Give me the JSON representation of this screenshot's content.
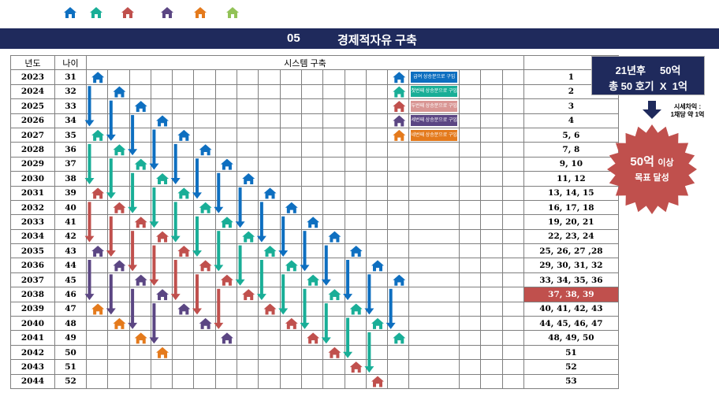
{
  "header": {
    "number": "05",
    "title": "경제적자유 구축"
  },
  "colors": {
    "blue": "#0e6fc0",
    "teal": "#19ae97",
    "red": "#c0504d",
    "purple": "#5b4683",
    "orange": "#e47a1c",
    "green": "#92c257",
    "navy": "#1f2a5c"
  },
  "top_icons": [
    "house-icon-blue",
    "house-icon-teal",
    "house-icon-red",
    "house-icon-purple",
    "house-icon-orange",
    "house-icon-green"
  ],
  "table": {
    "headers": {
      "year": "년도",
      "age": "나이",
      "system": "시스템 구축"
    },
    "rows": [
      {
        "year": "2023",
        "age": "31",
        "result": "1"
      },
      {
        "year": "2024",
        "age": "32",
        "result": "2"
      },
      {
        "year": "2025",
        "age": "33",
        "result": "3"
      },
      {
        "year": "2026",
        "age": "34",
        "result": "4"
      },
      {
        "year": "2027",
        "age": "35",
        "result": "5, 6"
      },
      {
        "year": "2028",
        "age": "36",
        "result": "7, 8"
      },
      {
        "year": "2029",
        "age": "37",
        "result": "9, 10"
      },
      {
        "year": "2030",
        "age": "38",
        "result": "11, 12"
      },
      {
        "year": "2031",
        "age": "39",
        "result": "13, 14, 15"
      },
      {
        "year": "2032",
        "age": "40",
        "result": "16, 17, 18"
      },
      {
        "year": "2033",
        "age": "41",
        "result": "19, 20, 21"
      },
      {
        "year": "2034",
        "age": "42",
        "result": "22, 23, 24"
      },
      {
        "year": "2035",
        "age": "43",
        "result": "25, 26, 27 ,28"
      },
      {
        "year": "2036",
        "age": "44",
        "result": "29, 30, 31, 32"
      },
      {
        "year": "2037",
        "age": "45",
        "result": "33, 34, 35, 36"
      },
      {
        "year": "2038",
        "age": "46",
        "result": "37, 38, 39"
      },
      {
        "year": "2039",
        "age": "47",
        "result": "40, 41, 42, 43"
      },
      {
        "year": "2040",
        "age": "48",
        "result": "44, 45, 46, 47"
      },
      {
        "year": "2041",
        "age": "49",
        "result": "48, 49, 50"
      },
      {
        "year": "2042",
        "age": "50",
        "result": "51"
      },
      {
        "year": "2043",
        "age": "51",
        "result": "52"
      },
      {
        "year": "2044",
        "age": "52",
        "result": "53"
      }
    ],
    "highlight_row_year": "2038"
  },
  "legend": [
    {
      "color": "#0e6fc0",
      "label": "급여 상승분으로 구입"
    },
    {
      "color": "#19ae97",
      "label": "첫번째 상승분으로 구입"
    },
    {
      "color": "#d99694",
      "label": "두번째 상승분으로 구입"
    },
    {
      "color": "#5b4683",
      "label": "세번째 상승분으로 구입"
    },
    {
      "color": "#e47a1c",
      "label": "네번째 상승분으로 구입"
    }
  ],
  "summary": {
    "line1": "21년후     50억",
    "line2": "총 50 호기  X  1억",
    "price_note_1": "시세차익 :",
    "price_note_2": "1채당 약 1억",
    "goal_big": "50억",
    "goal_small": "이상",
    "goal_line2": "목표 달성"
  }
}
